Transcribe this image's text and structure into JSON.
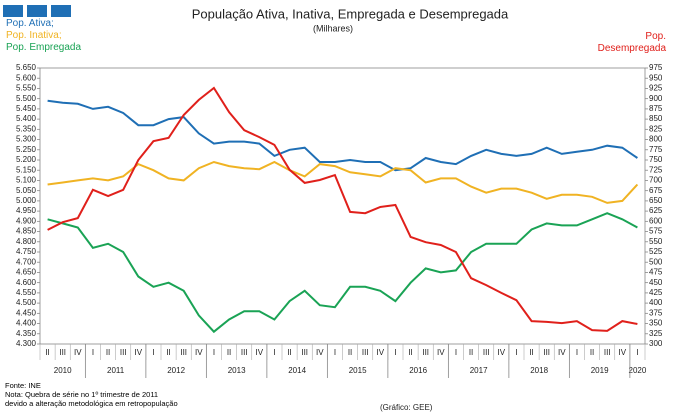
{
  "chart_data": {
    "type": "line",
    "title": "População Ativa, Inativa, Empregada  e Desempregada",
    "subtitle": "(Milhares)",
    "categories": [
      "II",
      "III",
      "IV",
      "I",
      "II",
      "III",
      "IV",
      "I",
      "II",
      "III",
      "IV",
      "I",
      "II",
      "III",
      "IV",
      "I",
      "II",
      "III",
      "IV",
      "I",
      "II",
      "III",
      "IV",
      "I",
      "II",
      "III",
      "IV",
      "I",
      "II",
      "III",
      "IV",
      "I",
      "II",
      "III",
      "IV",
      "I",
      "II",
      "III",
      "IV",
      "I"
    ],
    "years": [
      "2010",
      "2011",
      "2012",
      "2013",
      "2014",
      "2015",
      "2016",
      "2017",
      "2018",
      "2019",
      "2020"
    ],
    "series": [
      {
        "name": "Pop. Ativa;",
        "color": "#1f6fb5",
        "values": [
          5.49,
          5.48,
          5.475,
          5.45,
          5.46,
          5.43,
          5.37,
          5.37,
          5.4,
          5.41,
          5.33,
          5.28,
          5.29,
          5.29,
          5.28,
          5.22,
          5.25,
          5.26,
          5.19,
          5.19,
          5.2,
          5.19,
          5.19,
          5.15,
          5.16,
          5.21,
          5.19,
          5.18,
          5.22,
          5.25,
          5.23,
          5.22,
          5.23,
          5.26,
          5.23,
          5.24,
          5.25,
          5.27,
          5.26,
          5.21
        ]
      },
      {
        "name": "Pop. Inativa;",
        "color": "#f0b323",
        "values": [
          5.08,
          5.09,
          5.1,
          5.11,
          5.1,
          5.12,
          5.18,
          5.15,
          5.11,
          5.1,
          5.16,
          5.19,
          5.17,
          5.16,
          5.155,
          5.19,
          5.15,
          5.12,
          5.18,
          5.17,
          5.14,
          5.13,
          5.12,
          5.16,
          5.15,
          5.09,
          5.11,
          5.11,
          5.07,
          5.04,
          5.06,
          5.06,
          5.04,
          5.01,
          5.03,
          5.03,
          5.02,
          4.99,
          5.0,
          5.08
        ]
      },
      {
        "name": "Pop. Empregada",
        "color": "#1aa355",
        "values": [
          4.91,
          4.89,
          4.87,
          4.77,
          4.79,
          4.75,
          4.63,
          4.58,
          4.6,
          4.56,
          4.44,
          4.36,
          4.42,
          4.46,
          4.46,
          4.42,
          4.51,
          4.56,
          4.49,
          4.48,
          4.58,
          4.58,
          4.56,
          4.51,
          4.6,
          4.67,
          4.65,
          4.66,
          4.75,
          4.79,
          4.79,
          4.79,
          4.86,
          4.89,
          4.88,
          4.88,
          4.91,
          4.94,
          4.91,
          4.87
        ]
      },
      {
        "name": "Pop. Desempregada",
        "color": "#e0201b",
        "axis": "y2",
        "values": [
          579,
          598,
          608,
          677,
          662,
          677,
          750,
          796,
          804,
          860,
          897,
          926,
          867,
          823,
          806,
          787,
          726,
          694,
          701,
          713,
          623,
          620,
          635,
          640,
          562,
          549,
          542,
          525,
          461,
          444,
          425,
          407,
          356,
          354,
          351,
          356,
          334,
          332,
          356,
          349
        ]
      }
    ],
    "ylim": [
      4.3,
      5.65
    ],
    "yticks": [
      {
        "value": 4.3,
        "label": "4.300"
      },
      {
        "value": 4.35,
        "label": "4.350"
      },
      {
        "value": 4.4,
        "label": "4.400"
      },
      {
        "value": 4.45,
        "label": "4.450"
      },
      {
        "value": 4.5,
        "label": "4.500"
      },
      {
        "value": 4.55,
        "label": "4.550"
      },
      {
        "value": 4.6,
        "label": "4.600"
      },
      {
        "value": 4.65,
        "label": "4.650"
      },
      {
        "value": 4.7,
        "label": "4.700"
      },
      {
        "value": 4.75,
        "label": "4.750"
      },
      {
        "value": 4.8,
        "label": "4.800"
      },
      {
        "value": 4.85,
        "label": "4.850"
      },
      {
        "value": 4.9,
        "label": "4.900"
      },
      {
        "value": 4.95,
        "label": "4.950"
      },
      {
        "value": 5.0,
        "label": "5.000"
      },
      {
        "value": 5.05,
        "label": "5.050"
      },
      {
        "value": 5.1,
        "label": "5.100"
      },
      {
        "value": 5.15,
        "label": "5.150"
      },
      {
        "value": 5.2,
        "label": "5.200"
      },
      {
        "value": 5.25,
        "label": "5.250"
      },
      {
        "value": 5.3,
        "label": "5.300"
      },
      {
        "value": 5.35,
        "label": "5.350"
      },
      {
        "value": 5.4,
        "label": "5.400"
      },
      {
        "value": 5.45,
        "label": "5.450"
      },
      {
        "value": 5.5,
        "label": "5.500"
      },
      {
        "value": 5.55,
        "label": "5.550"
      },
      {
        "value": 5.6,
        "label": "5.600"
      },
      {
        "value": 5.65,
        "label": "5.650"
      }
    ],
    "y2lim": [
      300,
      975
    ],
    "y2ticks": [
      300,
      325,
      350,
      375,
      400,
      425,
      450,
      475,
      500,
      525,
      550,
      575,
      600,
      625,
      650,
      675,
      700,
      725,
      750,
      775,
      800,
      825,
      850,
      875,
      900,
      925,
      950,
      975
    ],
    "notes": [
      "Fonte: INE",
      "Nota: Quebra de série no 1º trimestre de 2011",
      "devido a alteração metodológica em retropopulação"
    ],
    "credit": "(Gráfico: GEE)"
  }
}
